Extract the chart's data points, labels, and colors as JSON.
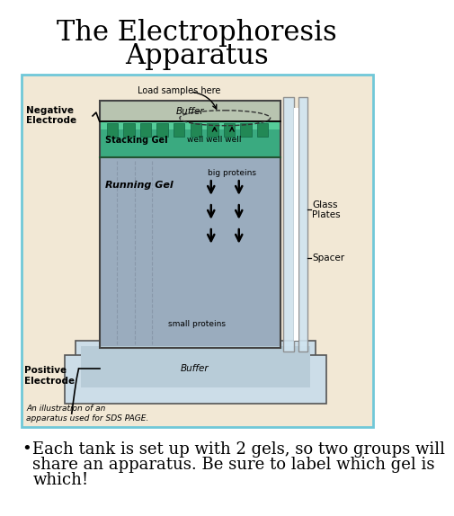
{
  "title_line1": "The Electrophoresis",
  "title_line2": "Apparatus",
  "title_fontsize": 22,
  "title_font": "serif",
  "bg_color": "#ffffff",
  "border_color": "#70c8d8",
  "diagram_bg": "#f2e8d5",
  "buffer_top_color": "#c8d4be",
  "stacking_gel_color": "#3aaa80",
  "stacking_gel_top_color": "#55ccaa",
  "running_gel_color": "#a8b4c2",
  "tank_color": "#cce0ea",
  "glass_color": "#d8eaf4",
  "bullet_fontsize": 13,
  "caption_fontsize": 6.5,
  "label_fontsize": 7,
  "diagram_label_fontsize": 7.5,
  "caption_text": "An illustration of an\napparatus used for SDS PAGE.",
  "neg_electrode_text": "Negative\nElectrode",
  "pos_electrode_text": "Positive\nElectrode",
  "load_samples_text": "Load samples here",
  "buffer_top_text": "Buffer",
  "stacking_gel_text": "Stacking Gel",
  "well_text": "well well well",
  "running_gel_text": "Running Gel",
  "big_proteins_text": "big proteins",
  "small_proteins_text": "small proteins",
  "glass_plates_text": "Glass\nPlates",
  "spacer_text": "Spacer",
  "buffer_bottom_text": "Buffer",
  "bullet_line1": "Each tank is set up with 2 gels, so two groups will",
  "bullet_line2": "share an apparatus. Be sure to label which gel is",
  "bullet_line3": "which!"
}
